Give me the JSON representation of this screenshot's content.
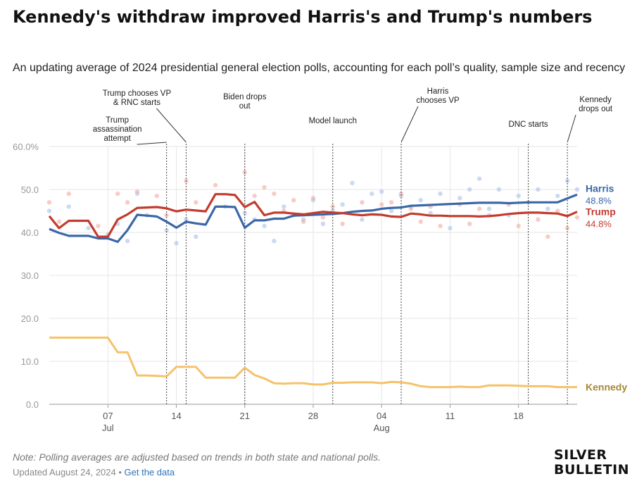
{
  "header": {
    "title": "Kennedy's withdraw improved Harris's and Trump's numbers",
    "subtitle": "An updating average of 2024 presidential general election polls, accounting for each poll’s quality, sample size and recency"
  },
  "footer": {
    "note": "Note: Polling averages are adjusted based on trends in both state and national polls.",
    "updated": "Updated August 24, 2024",
    "separator": "•",
    "data_link": "Get the data"
  },
  "brand": {
    "line1": "SILVER",
    "line2": "BULLETIN"
  },
  "chart_data": {
    "type": "line",
    "title": "Kennedy's withdraw improved Harris's and Trump's numbers",
    "subtitle": "An updating average of 2024 presidential general election polls, accounting for each poll’s quality, sample size and recency",
    "x_domain": [
      "2024-07-01",
      "2024-08-24"
    ],
    "ylim": [
      0,
      60
    ],
    "yticks": [
      {
        "value": 0,
        "label": "0.0"
      },
      {
        "value": 10,
        "label": "10.0"
      },
      {
        "value": 20,
        "label": "20.0"
      },
      {
        "value": 30,
        "label": "30.0"
      },
      {
        "value": 40,
        "label": "40.0"
      },
      {
        "value": 50,
        "label": "50.0"
      },
      {
        "value": 60,
        "label": "60.0%"
      }
    ],
    "xticks": [
      {
        "date": "2024-07-07",
        "label": "07",
        "month": "Jul"
      },
      {
        "date": "2024-07-14",
        "label": "14",
        "month": ""
      },
      {
        "date": "2024-07-21",
        "label": "21",
        "month": ""
      },
      {
        "date": "2024-07-28",
        "label": "28",
        "month": ""
      },
      {
        "date": "2024-08-04",
        "label": "04",
        "month": "Aug"
      },
      {
        "date": "2024-08-11",
        "label": "11",
        "month": ""
      },
      {
        "date": "2024-08-18",
        "label": "18",
        "month": ""
      }
    ],
    "grid": true,
    "colors": {
      "Harris": "#3a67a8",
      "Trump": "#c33b2e",
      "Kennedy": "#f5c26a",
      "Kennedy_label": "#a8893a",
      "grid": "#e6e6e6",
      "axis": "#999999"
    },
    "events": [
      {
        "date": "2024-07-13",
        "lines": [
          "Trump",
          "assassination",
          "attempt"
        ],
        "offset": -1
      },
      {
        "date": "2024-07-15",
        "lines": [
          "Trump chooses VP",
          "& RNC starts"
        ],
        "offset": -1
      },
      {
        "date": "2024-07-21",
        "lines": [
          "Biden drops",
          "out"
        ],
        "offset": 0
      },
      {
        "date": "2024-07-30",
        "lines": [
          "Model launch"
        ],
        "offset": 0
      },
      {
        "date": "2024-08-06",
        "lines": [
          "Harris",
          "chooses VP"
        ],
        "offset": 1
      },
      {
        "date": "2024-08-19",
        "lines": [
          "DNC starts"
        ],
        "offset": 0
      },
      {
        "date": "2024-08-23",
        "lines": [
          "Kennedy",
          "drops out"
        ],
        "offset": 1
      }
    ],
    "series": [
      {
        "name": "Harris",
        "end_label": "48.8%",
        "dates": [
          "2024-07-01",
          "2024-07-02",
          "2024-07-03",
          "2024-07-04",
          "2024-07-05",
          "2024-07-06",
          "2024-07-07",
          "2024-07-08",
          "2024-07-09",
          "2024-07-10",
          "2024-07-11",
          "2024-07-12",
          "2024-07-13",
          "2024-07-14",
          "2024-07-15",
          "2024-07-16",
          "2024-07-17",
          "2024-07-18",
          "2024-07-19",
          "2024-07-20",
          "2024-07-21",
          "2024-07-22",
          "2024-07-23",
          "2024-07-24",
          "2024-07-25",
          "2024-07-26",
          "2024-07-27",
          "2024-07-28",
          "2024-07-29",
          "2024-07-30",
          "2024-07-31",
          "2024-08-01",
          "2024-08-02",
          "2024-08-03",
          "2024-08-04",
          "2024-08-05",
          "2024-08-06",
          "2024-08-07",
          "2024-08-08",
          "2024-08-09",
          "2024-08-10",
          "2024-08-11",
          "2024-08-12",
          "2024-08-13",
          "2024-08-14",
          "2024-08-15",
          "2024-08-16",
          "2024-08-17",
          "2024-08-18",
          "2024-08-19",
          "2024-08-20",
          "2024-08-21",
          "2024-08-22",
          "2024-08-23",
          "2024-08-24"
        ],
        "values": [
          40.8,
          39.9,
          39.2,
          39.2,
          39.2,
          38.6,
          38.6,
          37.8,
          40.5,
          44.1,
          43.9,
          43.7,
          42.5,
          41.1,
          42.5,
          42.1,
          41.8,
          46.0,
          46.0,
          45.9,
          41.1,
          42.8,
          42.8,
          43.2,
          43.2,
          43.9,
          44.0,
          44.1,
          44.2,
          44.3,
          44.5,
          44.8,
          45.0,
          45.1,
          45.5,
          45.7,
          45.8,
          46.2,
          46.3,
          46.4,
          46.5,
          46.6,
          46.7,
          46.8,
          46.9,
          46.9,
          46.9,
          46.8,
          46.9,
          47.0,
          47.0,
          47.0,
          47.0,
          47.9,
          48.8
        ]
      },
      {
        "name": "Trump",
        "end_label": "44.8%",
        "dates": [
          "2024-07-01",
          "2024-07-02",
          "2024-07-03",
          "2024-07-04",
          "2024-07-05",
          "2024-07-06",
          "2024-07-07",
          "2024-07-08",
          "2024-07-09",
          "2024-07-10",
          "2024-07-11",
          "2024-07-12",
          "2024-07-13",
          "2024-07-14",
          "2024-07-15",
          "2024-07-16",
          "2024-07-17",
          "2024-07-18",
          "2024-07-19",
          "2024-07-20",
          "2024-07-21",
          "2024-07-22",
          "2024-07-23",
          "2024-07-24",
          "2024-07-25",
          "2024-07-26",
          "2024-07-27",
          "2024-07-28",
          "2024-07-29",
          "2024-07-30",
          "2024-07-31",
          "2024-08-01",
          "2024-08-02",
          "2024-08-03",
          "2024-08-04",
          "2024-08-05",
          "2024-08-06",
          "2024-08-07",
          "2024-08-08",
          "2024-08-09",
          "2024-08-10",
          "2024-08-11",
          "2024-08-12",
          "2024-08-13",
          "2024-08-14",
          "2024-08-15",
          "2024-08-16",
          "2024-08-17",
          "2024-08-18",
          "2024-08-19",
          "2024-08-20",
          "2024-08-21",
          "2024-08-22",
          "2024-08-23",
          "2024-08-24"
        ],
        "values": [
          43.8,
          41.0,
          42.7,
          42.7,
          42.7,
          39.0,
          39.0,
          43.0,
          44.2,
          45.7,
          45.8,
          45.9,
          45.6,
          44.9,
          45.3,
          45.1,
          44.9,
          48.9,
          48.9,
          48.7,
          45.9,
          47.1,
          44.0,
          44.6,
          44.6,
          44.4,
          44.2,
          44.5,
          44.8,
          44.6,
          44.5,
          44.2,
          44.0,
          44.2,
          44.1,
          43.7,
          43.6,
          44.4,
          44.2,
          43.9,
          43.9,
          43.8,
          43.8,
          43.8,
          43.7,
          43.8,
          44.0,
          44.3,
          44.5,
          44.6,
          44.6,
          44.5,
          44.4,
          43.8,
          44.8
        ]
      },
      {
        "name": "Kennedy",
        "end_label": "",
        "dates": [
          "2024-07-01",
          "2024-07-02",
          "2024-07-03",
          "2024-07-04",
          "2024-07-05",
          "2024-07-06",
          "2024-07-07",
          "2024-07-08",
          "2024-07-09",
          "2024-07-10",
          "2024-07-11",
          "2024-07-12",
          "2024-07-13",
          "2024-07-14",
          "2024-07-15",
          "2024-07-16",
          "2024-07-17",
          "2024-07-18",
          "2024-07-19",
          "2024-07-20",
          "2024-07-21",
          "2024-07-22",
          "2024-07-23",
          "2024-07-24",
          "2024-07-25",
          "2024-07-26",
          "2024-07-27",
          "2024-07-28",
          "2024-07-29",
          "2024-07-30",
          "2024-07-31",
          "2024-08-01",
          "2024-08-02",
          "2024-08-03",
          "2024-08-04",
          "2024-08-05",
          "2024-08-06",
          "2024-08-07",
          "2024-08-08",
          "2024-08-09",
          "2024-08-10",
          "2024-08-11",
          "2024-08-12",
          "2024-08-13",
          "2024-08-14",
          "2024-08-15",
          "2024-08-16",
          "2024-08-17",
          "2024-08-18",
          "2024-08-19",
          "2024-08-20",
          "2024-08-21",
          "2024-08-22",
          "2024-08-23",
          "2024-08-24"
        ],
        "values": [
          15.5,
          15.5,
          15.5,
          15.5,
          15.5,
          15.5,
          15.5,
          12.1,
          12.1,
          6.7,
          6.7,
          6.6,
          6.5,
          8.7,
          8.7,
          8.7,
          6.2,
          6.2,
          6.2,
          6.2,
          8.5,
          6.8,
          6.0,
          4.9,
          4.8,
          4.9,
          4.9,
          4.6,
          4.6,
          5.0,
          5.0,
          5.1,
          5.1,
          5.1,
          4.9,
          5.2,
          5.1,
          4.8,
          4.2,
          4.0,
          4.0,
          4.0,
          4.1,
          4.0,
          4.0,
          4.4,
          4.4,
          4.4,
          4.3,
          4.2,
          4.2,
          4.2,
          4.0,
          4.0,
          4.0
        ]
      }
    ],
    "polls": [
      {
        "name": "Harris",
        "points": [
          [
            "2024-07-01",
            45.0
          ],
          [
            "2024-07-03",
            46.0
          ],
          [
            "2024-07-05",
            41.0
          ],
          [
            "2024-07-07",
            39.5
          ],
          [
            "2024-07-08",
            42.0
          ],
          [
            "2024-07-09",
            38.0
          ],
          [
            "2024-07-10",
            49.0
          ],
          [
            "2024-07-11",
            44.0
          ],
          [
            "2024-07-13",
            40.5
          ],
          [
            "2024-07-14",
            37.5
          ],
          [
            "2024-07-15",
            43.0
          ],
          [
            "2024-07-16",
            39.0
          ],
          [
            "2024-07-19",
            46.0
          ],
          [
            "2024-07-21",
            44.5
          ],
          [
            "2024-07-22",
            43.0
          ],
          [
            "2024-07-23",
            41.5
          ],
          [
            "2024-07-24",
            38.0
          ],
          [
            "2024-07-25",
            46.0
          ],
          [
            "2024-07-26",
            44.0
          ],
          [
            "2024-07-27",
            43.0
          ],
          [
            "2024-07-28",
            47.5
          ],
          [
            "2024-07-29",
            42.0
          ],
          [
            "2024-07-30",
            45.0
          ],
          [
            "2024-07-31",
            46.5
          ],
          [
            "2024-08-01",
            51.5
          ],
          [
            "2024-08-02",
            43.0
          ],
          [
            "2024-08-03",
            49.0
          ],
          [
            "2024-08-04",
            49.5
          ],
          [
            "2024-08-05",
            45.0
          ],
          [
            "2024-08-06",
            48.5
          ],
          [
            "2024-08-07",
            46.0
          ],
          [
            "2024-08-08",
            47.5
          ],
          [
            "2024-08-09",
            44.5
          ],
          [
            "2024-08-10",
            49.0
          ],
          [
            "2024-08-11",
            41.0
          ],
          [
            "2024-08-12",
            48.0
          ],
          [
            "2024-08-13",
            50.0
          ],
          [
            "2024-08-14",
            52.5
          ],
          [
            "2024-08-15",
            45.5
          ],
          [
            "2024-08-16",
            50.0
          ],
          [
            "2024-08-17",
            44.0
          ],
          [
            "2024-08-18",
            48.5
          ],
          [
            "2024-08-19",
            47.0
          ],
          [
            "2024-08-20",
            50.0
          ],
          [
            "2024-08-21",
            45.5
          ],
          [
            "2024-08-22",
            48.5
          ],
          [
            "2024-08-23",
            52.0
          ],
          [
            "2024-08-24",
            50.0
          ]
        ]
      },
      {
        "name": "Trump",
        "points": [
          [
            "2024-07-01",
            47.0
          ],
          [
            "2024-07-02",
            42.5
          ],
          [
            "2024-07-03",
            49.0
          ],
          [
            "2024-07-06",
            41.5
          ],
          [
            "2024-07-08",
            49.0
          ],
          [
            "2024-07-09",
            47.0
          ],
          [
            "2024-07-10",
            49.5
          ],
          [
            "2024-07-12",
            48.5
          ],
          [
            "2024-07-13",
            44.0
          ],
          [
            "2024-07-15",
            52.0
          ],
          [
            "2024-07-16",
            47.0
          ],
          [
            "2024-07-18",
            51.0
          ],
          [
            "2024-07-21",
            54.0
          ],
          [
            "2024-07-22",
            48.5
          ],
          [
            "2024-07-23",
            50.5
          ],
          [
            "2024-07-24",
            49.0
          ],
          [
            "2024-07-25",
            45.0
          ],
          [
            "2024-07-26",
            47.5
          ],
          [
            "2024-07-27",
            42.5
          ],
          [
            "2024-07-28",
            48.0
          ],
          [
            "2024-07-29",
            43.5
          ],
          [
            "2024-07-30",
            46.0
          ],
          [
            "2024-07-31",
            42.0
          ],
          [
            "2024-08-02",
            47.0
          ],
          [
            "2024-08-04",
            46.5
          ],
          [
            "2024-08-05",
            47.0
          ],
          [
            "2024-08-06",
            49.0
          ],
          [
            "2024-08-07",
            45.5
          ],
          [
            "2024-08-08",
            42.5
          ],
          [
            "2024-08-09",
            46.0
          ],
          [
            "2024-08-10",
            41.5
          ],
          [
            "2024-08-12",
            46.5
          ],
          [
            "2024-08-13",
            42.0
          ],
          [
            "2024-08-14",
            45.5
          ],
          [
            "2024-08-15",
            44.0
          ],
          [
            "2024-08-17",
            46.5
          ],
          [
            "2024-08-18",
            41.5
          ],
          [
            "2024-08-20",
            43.0
          ],
          [
            "2024-08-21",
            39.0
          ],
          [
            "2024-08-22",
            45.0
          ],
          [
            "2024-08-23",
            41.0
          ],
          [
            "2024-08-24",
            43.5
          ]
        ]
      }
    ]
  }
}
